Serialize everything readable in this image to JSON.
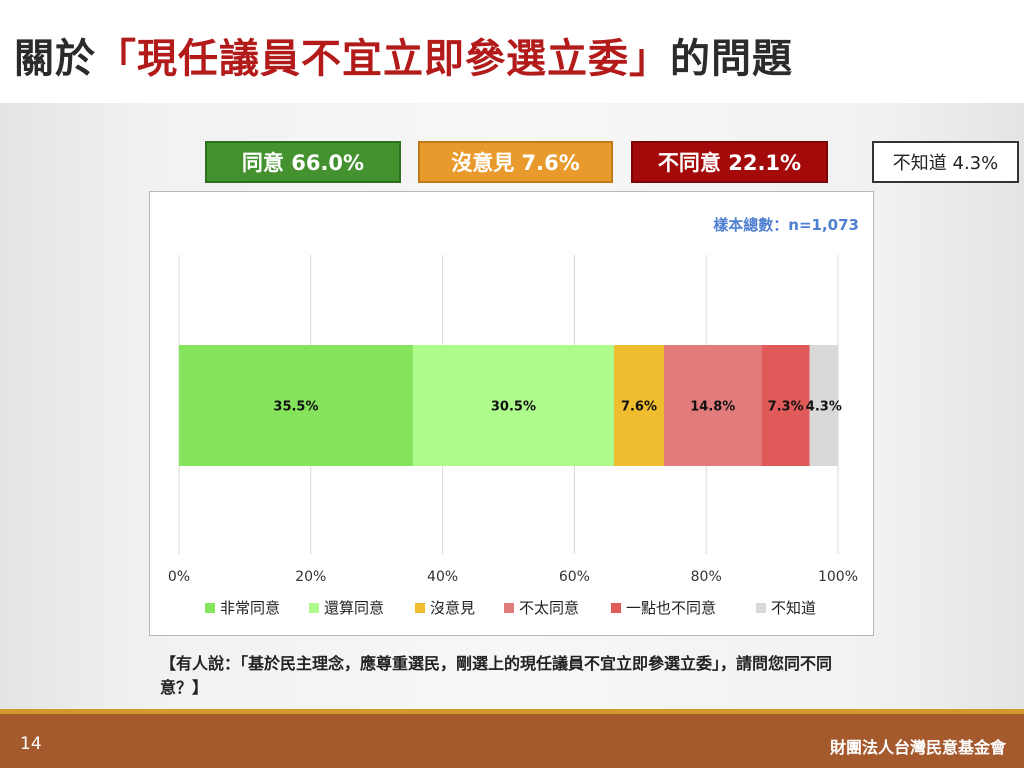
{
  "slide": {
    "title_prefix": "關於",
    "title_highlight": "「現任議員不宜立即參選立委」",
    "title_suffix": "的問題",
    "page_number": "14",
    "organization": "財團法人台灣民意基金會",
    "question": "【有人說：「基於民主理念，應尊重選民，剛選上的現任議員不宜立即參選立委」，請問您同不同意？】"
  },
  "summary": {
    "agree": "同意 66.0%",
    "neutral": "沒意見 7.6%",
    "disagree": "不同意 22.1%",
    "unknown": "不知道 4.3%"
  },
  "chart_data": {
    "type": "bar",
    "orientation": "horizontal-stacked-100",
    "sample_note": "樣本總數：n=1,073",
    "xlim": [
      0,
      100
    ],
    "x_ticks": [
      "0%",
      "20%",
      "40%",
      "60%",
      "80%",
      "100%"
    ],
    "series": [
      {
        "name": "非常同意",
        "value": 35.5,
        "label": "35.5%",
        "color": "#86e45c"
      },
      {
        "name": "還算同意",
        "value": 30.5,
        "label": "30.5%",
        "color": "#adfc8c"
      },
      {
        "name": "沒意見",
        "value": 7.6,
        "label": "7.6%",
        "color": "#f0bc30"
      },
      {
        "name": "不太同意",
        "value": 14.8,
        "label": "14.8%",
        "color": "#e27c7c"
      },
      {
        "name": "一點也不同意",
        "value": 7.3,
        "label": "7.3%",
        "color": "#e05a5a"
      },
      {
        "name": "不知道",
        "value": 4.3,
        "label": "4.3%",
        "color": "#d9d9d9"
      }
    ],
    "legend_position": "bottom",
    "grid": true
  }
}
